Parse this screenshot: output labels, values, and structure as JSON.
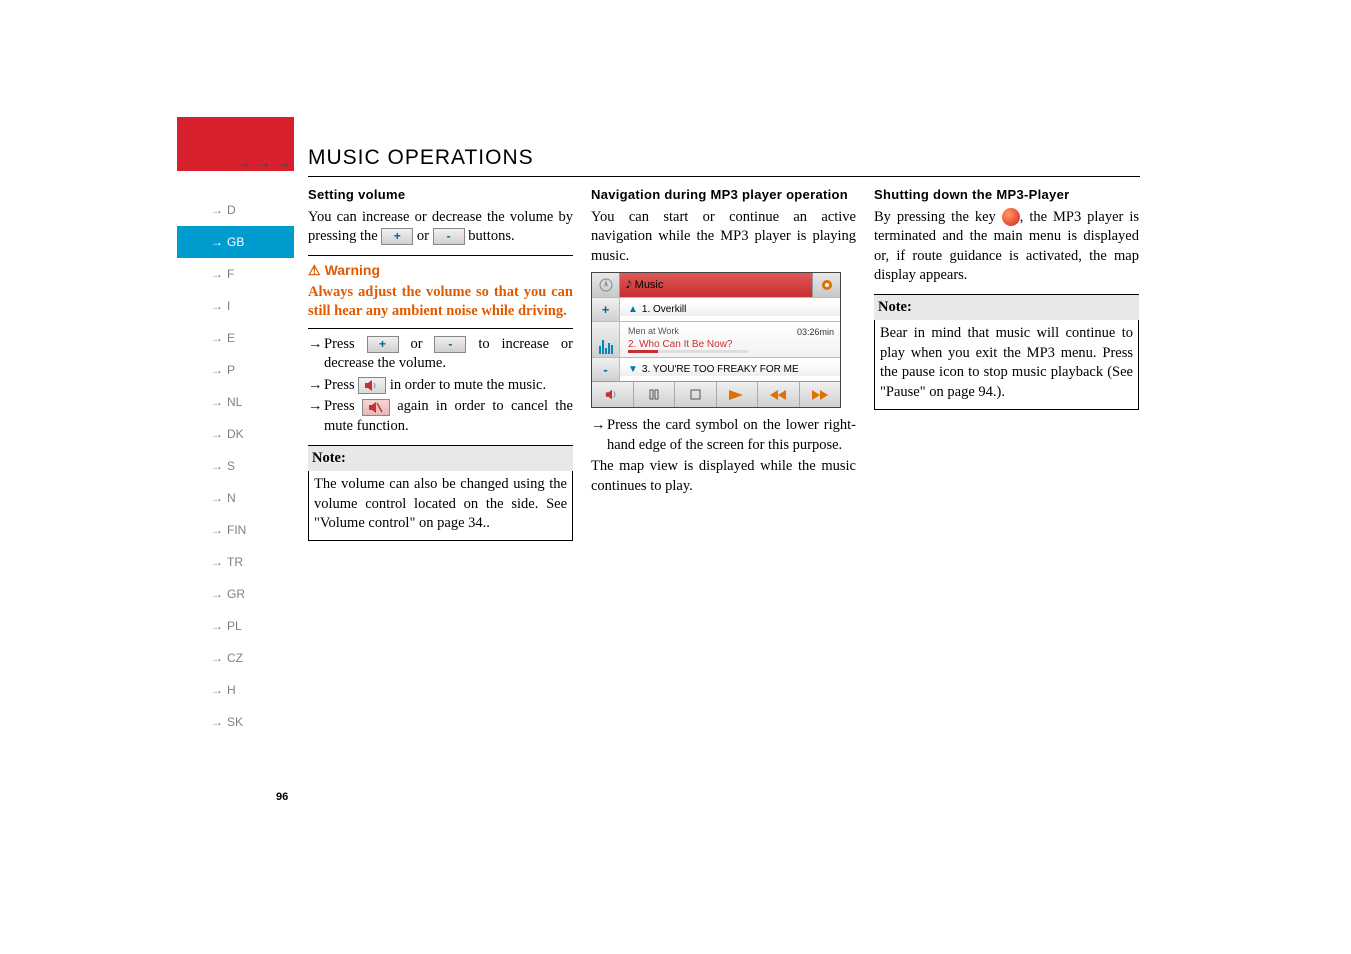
{
  "header": {
    "arrows": ">>>",
    "title": "MUSIC OPERATIONS"
  },
  "sidebar": {
    "items": [
      {
        "label": "D",
        "active": false
      },
      {
        "label": "GB",
        "active": true
      },
      {
        "label": "F",
        "active": false
      },
      {
        "label": "I",
        "active": false
      },
      {
        "label": "E",
        "active": false
      },
      {
        "label": "P",
        "active": false
      },
      {
        "label": "NL",
        "active": false
      },
      {
        "label": "DK",
        "active": false
      },
      {
        "label": "S",
        "active": false
      },
      {
        "label": "N",
        "active": false
      },
      {
        "label": "FIN",
        "active": false
      },
      {
        "label": "TR",
        "active": false
      },
      {
        "label": "GR",
        "active": false
      },
      {
        "label": "PL",
        "active": false
      },
      {
        "label": "CZ",
        "active": false
      },
      {
        "label": "H",
        "active": false
      },
      {
        "label": "SK",
        "active": false
      }
    ]
  },
  "page_number": "96",
  "col1": {
    "h_setting": "Setting volume",
    "p_intro_a": "You can increase or decrease the volume by pressing the ",
    "p_intro_b": " or ",
    "p_intro_c": " buttons.",
    "btn_plus": "+",
    "btn_minus": "-",
    "warn_label": "Warning",
    "warn_body": "Always adjust the volume so that you can still hear any ambient noise while driving.",
    "b1a": "Press ",
    "b1b": " or ",
    "b1c": " to increase or decrease the volume.",
    "b2a": "Press ",
    "b2b": " in order to mute the music.",
    "b3a": "Press ",
    "b3b": " again in order to cancel the mute function.",
    "note_label": "Note:",
    "note_body": "The volume can also be changed using the volume control located on the side. See \"Volume control\" on page 34.."
  },
  "col2": {
    "h_nav": "Navigation during MP3 player operation",
    "p_nav": "You can start or continue an active navigation while the MP3 player is playing music.",
    "mp3": {
      "title": "Music",
      "track_prev": "1. Overkill",
      "artist": "Men at Work",
      "current": "2. Who Can It Be Now?",
      "time": "03:26min",
      "track_next": "3. YOU'RE TOO FREAKY FOR ME"
    },
    "b1": "Press the card symbol on the lower right-hand edge of the screen for this purpose.",
    "p_end": "The map view is displayed while the music continues to play."
  },
  "col3": {
    "h_shut": "Shutting down the MP3-Player",
    "p_shut": "By pressing the key , the MP3 player is terminated and the main menu is displayed or, if route guidance is activated, the map display appears.",
    "p_shut_a": "By pressing the key ",
    "p_shut_b": ", the MP3 player is terminated and the main menu is displayed or, if route guidance is activated, the map display appears.",
    "note_label": "Note:",
    "note_body": "Bear in mind that music will continue to play when you exit the MP3 menu. Press the pause icon to stop music playback (See \"Pause\" on page 94.)."
  }
}
